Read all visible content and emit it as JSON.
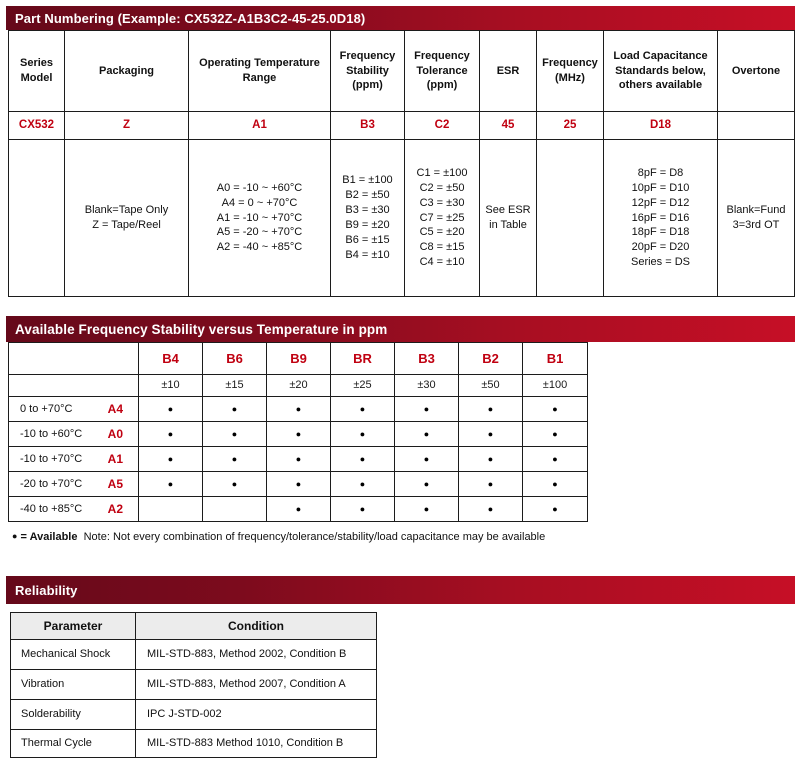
{
  "colors": {
    "bar_gradient_left": "#65091a",
    "bar_gradient_right": "#c60f26",
    "accent_red_text": "#c00111",
    "table_border": "#1c1c1c",
    "reliability_header_bg": "#ececec"
  },
  "part_numbering": {
    "title": "Part Numbering (Example: CX532Z-A1B3C2-45-25.0D18)",
    "columns": [
      {
        "header": "Series\nModel",
        "code": "CX532",
        "details": ""
      },
      {
        "header": "Packaging",
        "code": "Z",
        "details": "Blank=Tape Only\nZ = Tape/Reel"
      },
      {
        "header": "Operating Temperature\nRange",
        "code": "A1",
        "details": "A0 = -10 ~ +60°C\nA4 =  0 ~ +70°C\nA1 = -10 ~ +70°C\nA5 = -20 ~ +70°C\nA2 = -40 ~ +85°C"
      },
      {
        "header": "Frequency\nStability\n(ppm)",
        "code": "B3",
        "details": "B1 = ±100\nB2 = ±50\nB3 = ±30\nB9 = ±20\nB6 = ±15\nB4 = ±10"
      },
      {
        "header": "Frequency\nTolerance\n(ppm)",
        "code": "C2",
        "details": "C1 = ±100\nC2 = ±50\nC3 = ±30\nC7 = ±25\nC5 = ±20\nC8 = ±15\nC4 = ±10"
      },
      {
        "header": "ESR",
        "code": "45",
        "details": "See ESR\nin Table"
      },
      {
        "header": "Frequency\n(MHz)",
        "code": "25",
        "details": ""
      },
      {
        "header": "Load Capacitance\nStandards below,\nothers available",
        "code": "D18",
        "details": "8pF = D8\n10pF = D10\n12pF = D12\n16pF = D16\n18pF = D18\n20pF = D20\nSeries = DS"
      },
      {
        "header": "Overtone",
        "code": "",
        "details": "Blank=Fund\n3=3rd OT"
      }
    ]
  },
  "stability_matrix": {
    "title": "Available Frequency Stability versus Temperature in ppm",
    "codes": [
      "B4",
      "B6",
      "B9",
      "BR",
      "B3",
      "B2",
      "B1"
    ],
    "values": [
      "±10",
      "±15",
      "±20",
      "±25",
      "±30",
      "±50",
      "±100"
    ],
    "rows": [
      {
        "temp": "0 to +70°C",
        "code": "A4",
        "cells": [
          "●",
          "●",
          "●",
          "●",
          "●",
          "●",
          "●"
        ]
      },
      {
        "temp": "-10 to +60°C",
        "code": "A0",
        "cells": [
          "●",
          "●",
          "●",
          "●",
          "●",
          "●",
          "●"
        ]
      },
      {
        "temp": "-10 to +70°C",
        "code": "A1",
        "cells": [
          "●",
          "●",
          "●",
          "●",
          "●",
          "●",
          "●"
        ]
      },
      {
        "temp": "-20 to +70°C",
        "code": "A5",
        "cells": [
          "●",
          "●",
          "●",
          "●",
          "●",
          "●",
          "●"
        ]
      },
      {
        "temp": "-40 to +85°C",
        "code": "A2",
        "cells": [
          "",
          "",
          "●",
          "●",
          "●",
          "●",
          "●"
        ]
      }
    ],
    "legend_dot": "●",
    "legend_bold": "= Available",
    "note": "Note: Not every combination of frequency/tolerance/stability/load capacitance may be available"
  },
  "reliability": {
    "title": "Reliability",
    "headers": [
      "Parameter",
      "Condition"
    ],
    "rows": [
      {
        "parameter": "Mechanical Shock",
        "condition": "MIL-STD-883, Method 2002, Condition B"
      },
      {
        "parameter": "Vibration",
        "condition": "MIL-STD-883, Method 2007, Condition A"
      },
      {
        "parameter": "Solderability",
        "condition": "IPC J-STD-002"
      },
      {
        "parameter": "Thermal Cycle",
        "condition": "MIL-STD-883 Method 1010, Condition B"
      }
    ]
  }
}
